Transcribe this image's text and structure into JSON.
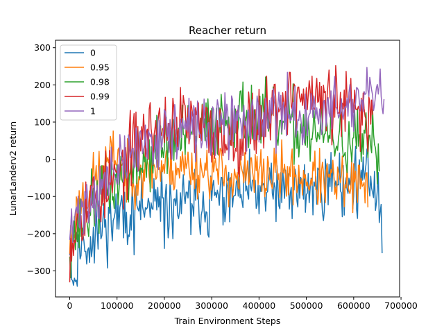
{
  "chart_data": {
    "type": "line",
    "title": "Reacher return",
    "xlabel": "Train Environment Steps",
    "ylabel": "LunarLanderv2 return",
    "xlim": [
      -30000,
      697000
    ],
    "ylim": [
      -370,
      320
    ],
    "xticks": [
      0,
      100000,
      200000,
      300000,
      400000,
      500000,
      600000,
      700000
    ],
    "xtick_labels": [
      "0",
      "100000",
      "200000",
      "300000",
      "400000",
      "500000",
      "600000",
      "700000"
    ],
    "yticks": [
      -300,
      -200,
      -100,
      0,
      100,
      200,
      300
    ],
    "ytick_labels": [
      "−300",
      "−200",
      "−100",
      "0",
      "100",
      "200",
      "300"
    ],
    "legend_position": "upper-left",
    "series": [
      {
        "name": "0",
        "color": "#1f77b4",
        "x_max": 660000,
        "keypoints": [
          [
            0,
            -200
          ],
          [
            8000,
            -340
          ],
          [
            20000,
            -240
          ],
          [
            40000,
            -220
          ],
          [
            60000,
            -190
          ],
          [
            80000,
            -170
          ],
          [
            100000,
            -150
          ],
          [
            150000,
            -140
          ],
          [
            200000,
            -130
          ],
          [
            250000,
            -120
          ],
          [
            300000,
            -110
          ],
          [
            350000,
            -100
          ],
          [
            400000,
            -90
          ],
          [
            450000,
            -90
          ],
          [
            500000,
            -80
          ],
          [
            550000,
            -60
          ],
          [
            600000,
            -60
          ],
          [
            640000,
            -50
          ],
          [
            660000,
            -170
          ]
        ],
        "noise": 85,
        "seed": 11
      },
      {
        "name": "0.95",
        "color": "#ff7f0e",
        "x_max": 630000,
        "keypoints": [
          [
            0,
            -230
          ],
          [
            20000,
            -120
          ],
          [
            50000,
            -60
          ],
          [
            80000,
            -10
          ],
          [
            100000,
            20
          ],
          [
            120000,
            -50
          ],
          [
            150000,
            -30
          ],
          [
            200000,
            -20
          ],
          [
            250000,
            -20
          ],
          [
            300000,
            -30
          ],
          [
            350000,
            -50
          ],
          [
            400000,
            -40
          ],
          [
            450000,
            -40
          ],
          [
            500000,
            -50
          ],
          [
            550000,
            -60
          ],
          [
            600000,
            -70
          ],
          [
            630000,
            -90
          ]
        ],
        "noise": 70,
        "seed": 23
      },
      {
        "name": "0.98",
        "color": "#2ca02c",
        "x_max": 655000,
        "keypoints": [
          [
            0,
            -220
          ],
          [
            20000,
            -180
          ],
          [
            50000,
            -120
          ],
          [
            100000,
            -60
          ],
          [
            150000,
            -10
          ],
          [
            200000,
            40
          ],
          [
            250000,
            60
          ],
          [
            300000,
            90
          ],
          [
            350000,
            120
          ],
          [
            400000,
            110
          ],
          [
            450000,
            90
          ],
          [
            500000,
            80
          ],
          [
            550000,
            60
          ],
          [
            600000,
            40
          ],
          [
            655000,
            20
          ]
        ],
        "noise": 85,
        "seed": 37
      },
      {
        "name": "0.99",
        "color": "#d62728",
        "x_max": 640000,
        "keypoints": [
          [
            0,
            -230
          ],
          [
            20000,
            -140
          ],
          [
            50000,
            -110
          ],
          [
            100000,
            -50
          ],
          [
            150000,
            60
          ],
          [
            200000,
            90
          ],
          [
            250000,
            100
          ],
          [
            300000,
            70
          ],
          [
            350000,
            60
          ],
          [
            400000,
            110
          ],
          [
            450000,
            160
          ],
          [
            500000,
            170
          ],
          [
            550000,
            150
          ],
          [
            600000,
            130
          ],
          [
            640000,
            110
          ]
        ],
        "noise": 90,
        "seed": 53
      },
      {
        "name": "1",
        "color": "#9467bd",
        "x_max": 665000,
        "keypoints": [
          [
            0,
            -210
          ],
          [
            20000,
            -130
          ],
          [
            50000,
            -100
          ],
          [
            100000,
            -30
          ],
          [
            150000,
            40
          ],
          [
            200000,
            70
          ],
          [
            250000,
            80
          ],
          [
            300000,
            80
          ],
          [
            350000,
            100
          ],
          [
            400000,
            110
          ],
          [
            450000,
            120
          ],
          [
            500000,
            120
          ],
          [
            550000,
            130
          ],
          [
            600000,
            150
          ],
          [
            665000,
            170
          ]
        ],
        "noise": 75,
        "seed": 71
      }
    ]
  }
}
